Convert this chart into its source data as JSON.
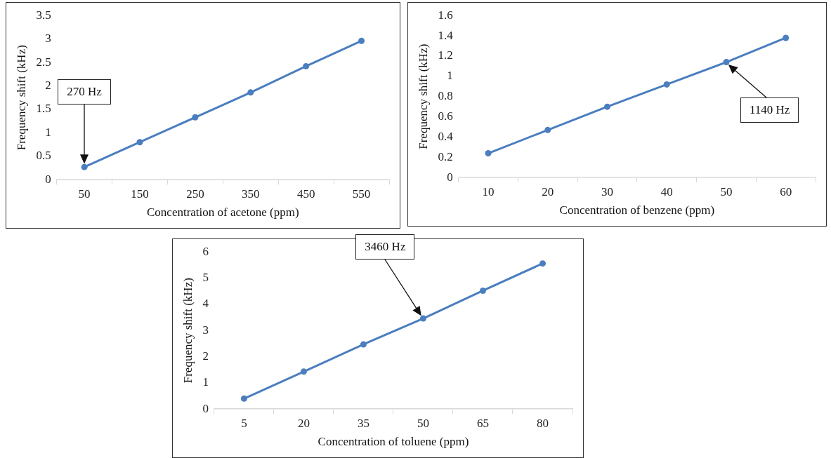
{
  "chart_data": [
    {
      "type": "line",
      "xlabel": "Concentration of acetone (ppm)",
      "ylabel": "Frequency shift (kHz)",
      "categories": [
        "50",
        "150",
        "250",
        "350",
        "450",
        "550"
      ],
      "series": [
        {
          "color": "#4a7ebf",
          "values": [
            0.27,
            0.8,
            1.33,
            1.86,
            2.42,
            2.96
          ]
        }
      ],
      "ylim": [
        0,
        3.5
      ],
      "yticks": [
        0,
        0.5,
        1,
        1.5,
        2,
        2.5,
        3,
        3.5
      ],
      "marker": "circle",
      "annotations": [
        "270 Hz"
      ]
    },
    {
      "type": "line",
      "xlabel": "Concentration of benzene (ppm)",
      "ylabel": "Frequency shift (kHz)",
      "categories": [
        "10",
        "20",
        "30",
        "40",
        "50",
        "60"
      ],
      "series": [
        {
          "color": "#4a7ebf",
          "values": [
            0.24,
            0.47,
            0.7,
            0.92,
            1.14,
            1.38
          ]
        }
      ],
      "ylim": [
        0,
        1.6
      ],
      "yticks": [
        0,
        0.2,
        0.4,
        0.6,
        0.8,
        1,
        1.2,
        1.4,
        1.6
      ],
      "marker": "circle",
      "annotations": [
        "1140 Hz"
      ]
    },
    {
      "type": "line",
      "xlabel": "Concentration of toluene (ppm)",
      "ylabel": "Frequency shift (kHz)",
      "categories": [
        "5",
        "20",
        "35",
        "50",
        "65",
        "80"
      ],
      "series": [
        {
          "color": "#4a7ebf",
          "values": [
            0.4,
            1.43,
            2.47,
            3.46,
            4.52,
            5.56
          ]
        }
      ],
      "ylim": [
        0,
        6
      ],
      "yticks": [
        0,
        1,
        2,
        3,
        4,
        5,
        6
      ],
      "marker": "circle",
      "annotations": [
        "3460 Hz"
      ]
    }
  ]
}
